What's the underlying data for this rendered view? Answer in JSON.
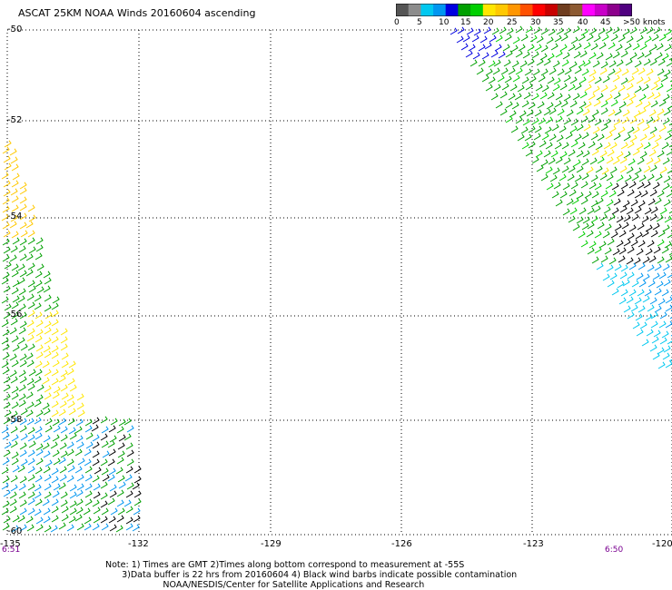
{
  "title": "ASCAT 25KM NOAA Winds 20160604 ascending",
  "legend": {
    "labels": [
      "0",
      "5",
      "10",
      "15",
      "20",
      "25",
      "30",
      "35",
      "40",
      "45",
      ">50 knots"
    ],
    "colors": [
      "#555555",
      "#8c8c8c",
      "#00c8f0",
      "#0096f0",
      "#0000e0",
      "#00a000",
      "#00d000",
      "#ffe600",
      "#ffc800",
      "#ff9600",
      "#ff5000",
      "#ff0000",
      "#c80000",
      "#6e3c1e",
      "#8c5a32",
      "#ff00ff",
      "#c800c8",
      "#8c008c",
      "#500080"
    ]
  },
  "axes": {
    "lat_labels": [
      "-50",
      "-52",
      "-54",
      "-56",
      "-58",
      "-60"
    ],
    "lon_labels": [
      "-135",
      "-132",
      "-129",
      "-126",
      "-123",
      "-120"
    ]
  },
  "times": {
    "left": "6:51",
    "right": "6:50"
  },
  "notes": [
    "Note: 1) Times are GMT 2)Times along bottom correspond to measurement at -55S",
    "      3)Data buffer is 22 hrs from 20160604 4) Black wind barbs indicate possible contamination",
    "                     NOAA/NESDIS/Center for Satellite Applications and Research"
  ]
}
